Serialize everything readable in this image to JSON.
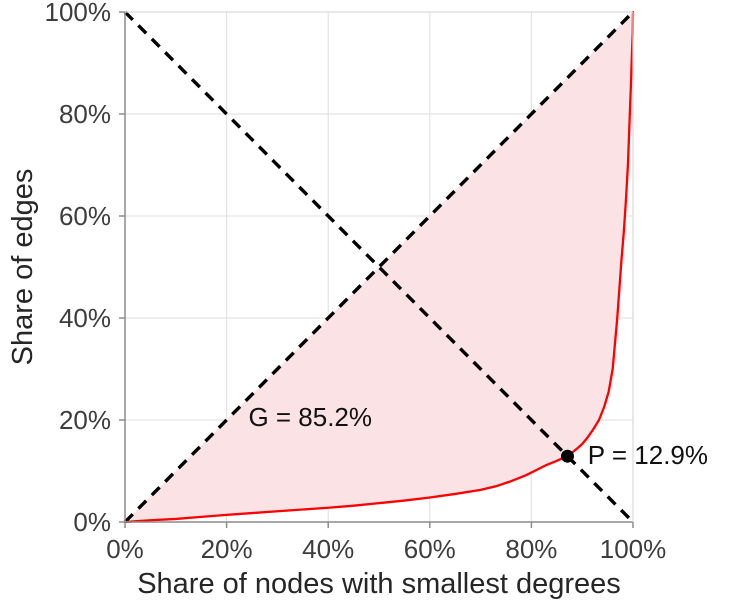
{
  "chart_data": {
    "type": "line",
    "title": "",
    "xlabel": "Share of nodes with smallest degrees",
    "ylabel": "Share of edges",
    "xlim": [
      0,
      100
    ],
    "ylim": [
      0,
      100
    ],
    "grid": true,
    "x_ticks": [
      {
        "value": 0,
        "label": "0%"
      },
      {
        "value": 20,
        "label": "20%"
      },
      {
        "value": 40,
        "label": "40%"
      },
      {
        "value": 60,
        "label": "60%"
      },
      {
        "value": 80,
        "label": "80%"
      },
      {
        "value": 100,
        "label": "100%"
      }
    ],
    "y_ticks": [
      {
        "value": 0,
        "label": "0%"
      },
      {
        "value": 20,
        "label": "20%"
      },
      {
        "value": 40,
        "label": "40%"
      },
      {
        "value": 60,
        "label": "60%"
      },
      {
        "value": 80,
        "label": "80%"
      },
      {
        "value": 100,
        "label": "100%"
      }
    ],
    "series": [
      {
        "name": "lorenz-curve",
        "color": "#ff0000",
        "width": 2.3,
        "x": [
          0,
          2,
          5,
          10,
          15,
          20,
          25,
          30,
          35,
          40,
          45,
          50,
          55,
          60,
          65,
          70,
          73,
          76,
          79,
          81,
          83,
          85,
          86,
          87.1,
          88,
          89,
          90,
          91,
          92,
          93.3,
          94.3,
          95.2,
          96,
          96.9,
          97.7,
          98.2,
          98.6,
          99,
          99.3,
          99.6,
          99.8,
          99.95,
          100
        ],
        "y": [
          0,
          0.15,
          0.35,
          0.6,
          1.0,
          1.4,
          1.75,
          2.1,
          2.45,
          2.8,
          3.2,
          3.7,
          4.2,
          4.8,
          5.5,
          6.3,
          7.0,
          8.0,
          9.2,
          10.2,
          11.2,
          12.0,
          12.45,
          12.9,
          13.6,
          14.4,
          15.3,
          16.5,
          17.9,
          20.0,
          22.5,
          25.5,
          30.0,
          40.0,
          51.0,
          57.0,
          63.0,
          70.0,
          78.0,
          86.0,
          92.0,
          96.0,
          100
        ]
      }
    ],
    "reference_lines": [
      {
        "name": "equality-line",
        "from": [
          0,
          0
        ],
        "to": [
          100,
          100
        ],
        "style": "dashed",
        "color": "#000000",
        "width": 3.4
      },
      {
        "name": "anti-diagonal",
        "from": [
          0,
          100
        ],
        "to": [
          100,
          0
        ],
        "style": "dashed",
        "color": "#000000",
        "width": 3.4
      }
    ],
    "shaded_region": {
      "description": "area between equality line and Lorenz curve (Gini area)",
      "fill": "#fbe3e5"
    },
    "point": {
      "x": 87.1,
      "y": 12.9,
      "color": "#000000",
      "radius": 6.5
    },
    "annotations": [
      {
        "id": "gini-label",
        "text": "G = 85.2%",
        "x": 24.3,
        "y": 20.6,
        "anchor": "start"
      },
      {
        "id": "p-value-label",
        "text": "P = 12.9%",
        "x": 91.1,
        "y": 13.1,
        "anchor": "start"
      }
    ],
    "legend": null
  },
  "colors": {
    "grid": "#e3e3e3",
    "spine": "#8c8c8c",
    "box_light": "#dedede",
    "curve": "#ff0000",
    "fill": "#fbe3e5",
    "dashed": "#000000",
    "point": "#000000",
    "background": "#ffffff"
  }
}
